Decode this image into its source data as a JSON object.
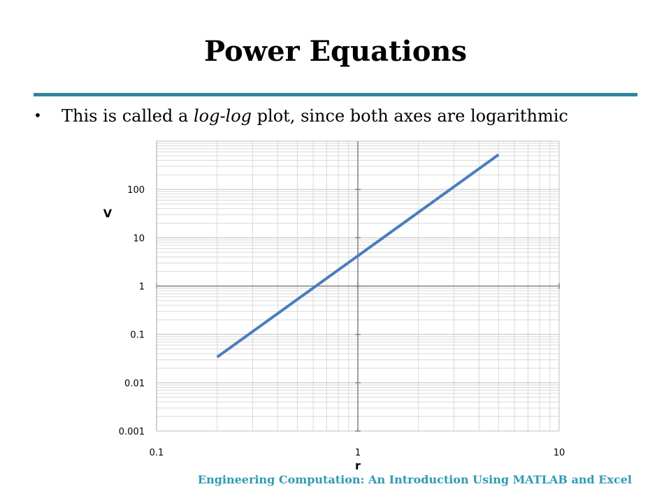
{
  "slide": {
    "title": "Power Equations",
    "bullet_prefix": "This is called a ",
    "bullet_italic": "log-log",
    "bullet_suffix": " plot, since both axes are logarithmic",
    "footer": "Engineering Computation: An Introduction Using MATLAB and Excel",
    "accent_color": "#31849B",
    "footer_color": "#2E9BB4"
  },
  "chart_data": {
    "type": "line",
    "xscale": "log",
    "yscale": "log",
    "xlim": [
      0.1,
      10
    ],
    "ylim": [
      0.001,
      1000
    ],
    "xlabel": "r",
    "ylabel": "V",
    "x_ticks": [
      "0.1",
      "1",
      "10"
    ],
    "y_ticks": [
      "0.001",
      "0.01",
      "0.1",
      "1",
      "10",
      "100"
    ],
    "grid": true,
    "series": [
      {
        "x": [
          0.2,
          5
        ],
        "y": [
          0.034,
          524
        ],
        "color": "#4A7EBB"
      }
    ]
  }
}
